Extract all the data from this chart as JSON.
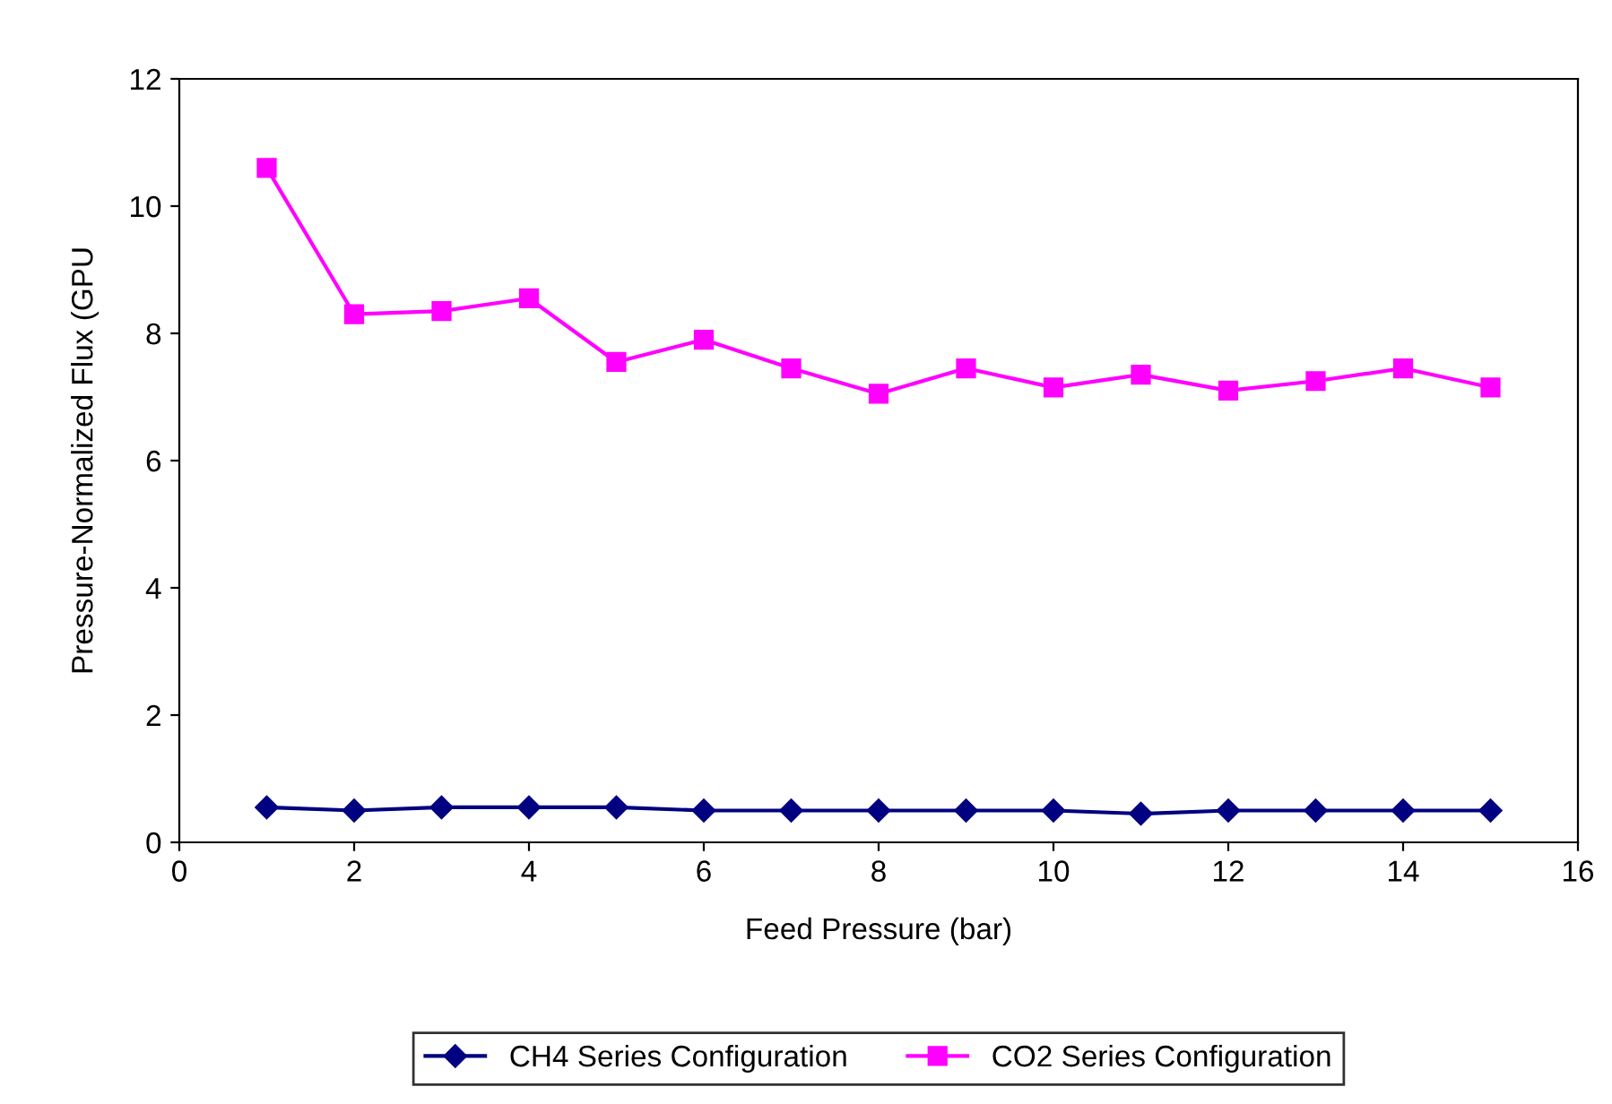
{
  "chart_data": {
    "type": "line",
    "xlabel": "Feed Pressure (bar)",
    "ylabel": "Pressure-Normalized Flux (GPU",
    "xlim": [
      0,
      16
    ],
    "xticks": [
      0,
      2,
      4,
      6,
      8,
      10,
      12,
      14,
      16
    ],
    "ylim": [
      0,
      12
    ],
    "yticks": [
      0,
      2,
      4,
      6,
      8,
      10,
      12
    ],
    "x": [
      1,
      2,
      3,
      4,
      5,
      6,
      7,
      8,
      9,
      10,
      11,
      12,
      13,
      14,
      15
    ],
    "series": [
      {
        "name": "CH4 Series Configuration",
        "color": "#000080",
        "marker": "diamond",
        "values": [
          0.55,
          0.5,
          0.55,
          0.55,
          0.55,
          0.5,
          0.5,
          0.5,
          0.5,
          0.5,
          0.45,
          0.5,
          0.5,
          0.5,
          0.5
        ]
      },
      {
        "name": "CO2 Series Configuration",
        "color": "#ff00ff",
        "marker": "square",
        "values": [
          10.6,
          8.3,
          8.35,
          8.55,
          7.55,
          7.9,
          7.45,
          7.05,
          7.45,
          7.15,
          7.35,
          7.1,
          7.25,
          7.45,
          7.15
        ]
      }
    ],
    "grid": false,
    "legend": "bottom",
    "line_style": "solid"
  }
}
